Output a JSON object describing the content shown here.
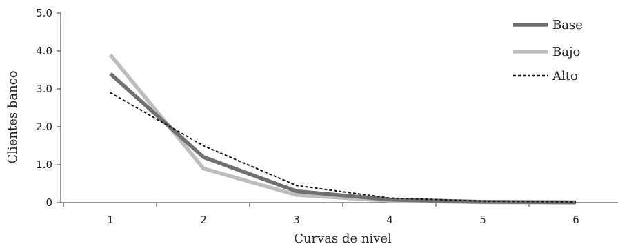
{
  "chart_data": {
    "type": "line",
    "xlabel": "Curvas de nivel",
    "ylabel": "Clientes banco",
    "x": [
      1,
      2,
      3,
      4,
      5,
      6
    ],
    "x_tick_labels": [
      "1",
      "2",
      "3",
      "4",
      "5",
      "6"
    ],
    "ylim": [
      0,
      5
    ],
    "y_ticks": [
      0,
      1,
      2,
      3,
      4,
      5
    ],
    "y_tick_labels": [
      "0",
      "1.0",
      "2.0",
      "3.0",
      "4.0",
      "5.0"
    ],
    "grid": false,
    "legend_position": "top-right",
    "series": [
      {
        "name": "Base",
        "values": [
          3.4,
          1.2,
          0.3,
          0.08,
          0.02,
          0.01
        ],
        "color": "#707070",
        "style": "solid-thick"
      },
      {
        "name": "Bajo",
        "values": [
          3.9,
          0.9,
          0.2,
          0.05,
          0.01,
          0.0
        ],
        "color": "#bdbdbd",
        "style": "solid-thick"
      },
      {
        "name": "Alto",
        "values": [
          2.9,
          1.5,
          0.45,
          0.12,
          0.04,
          0.02
        ],
        "color": "#111111",
        "style": "dotted"
      }
    ]
  }
}
